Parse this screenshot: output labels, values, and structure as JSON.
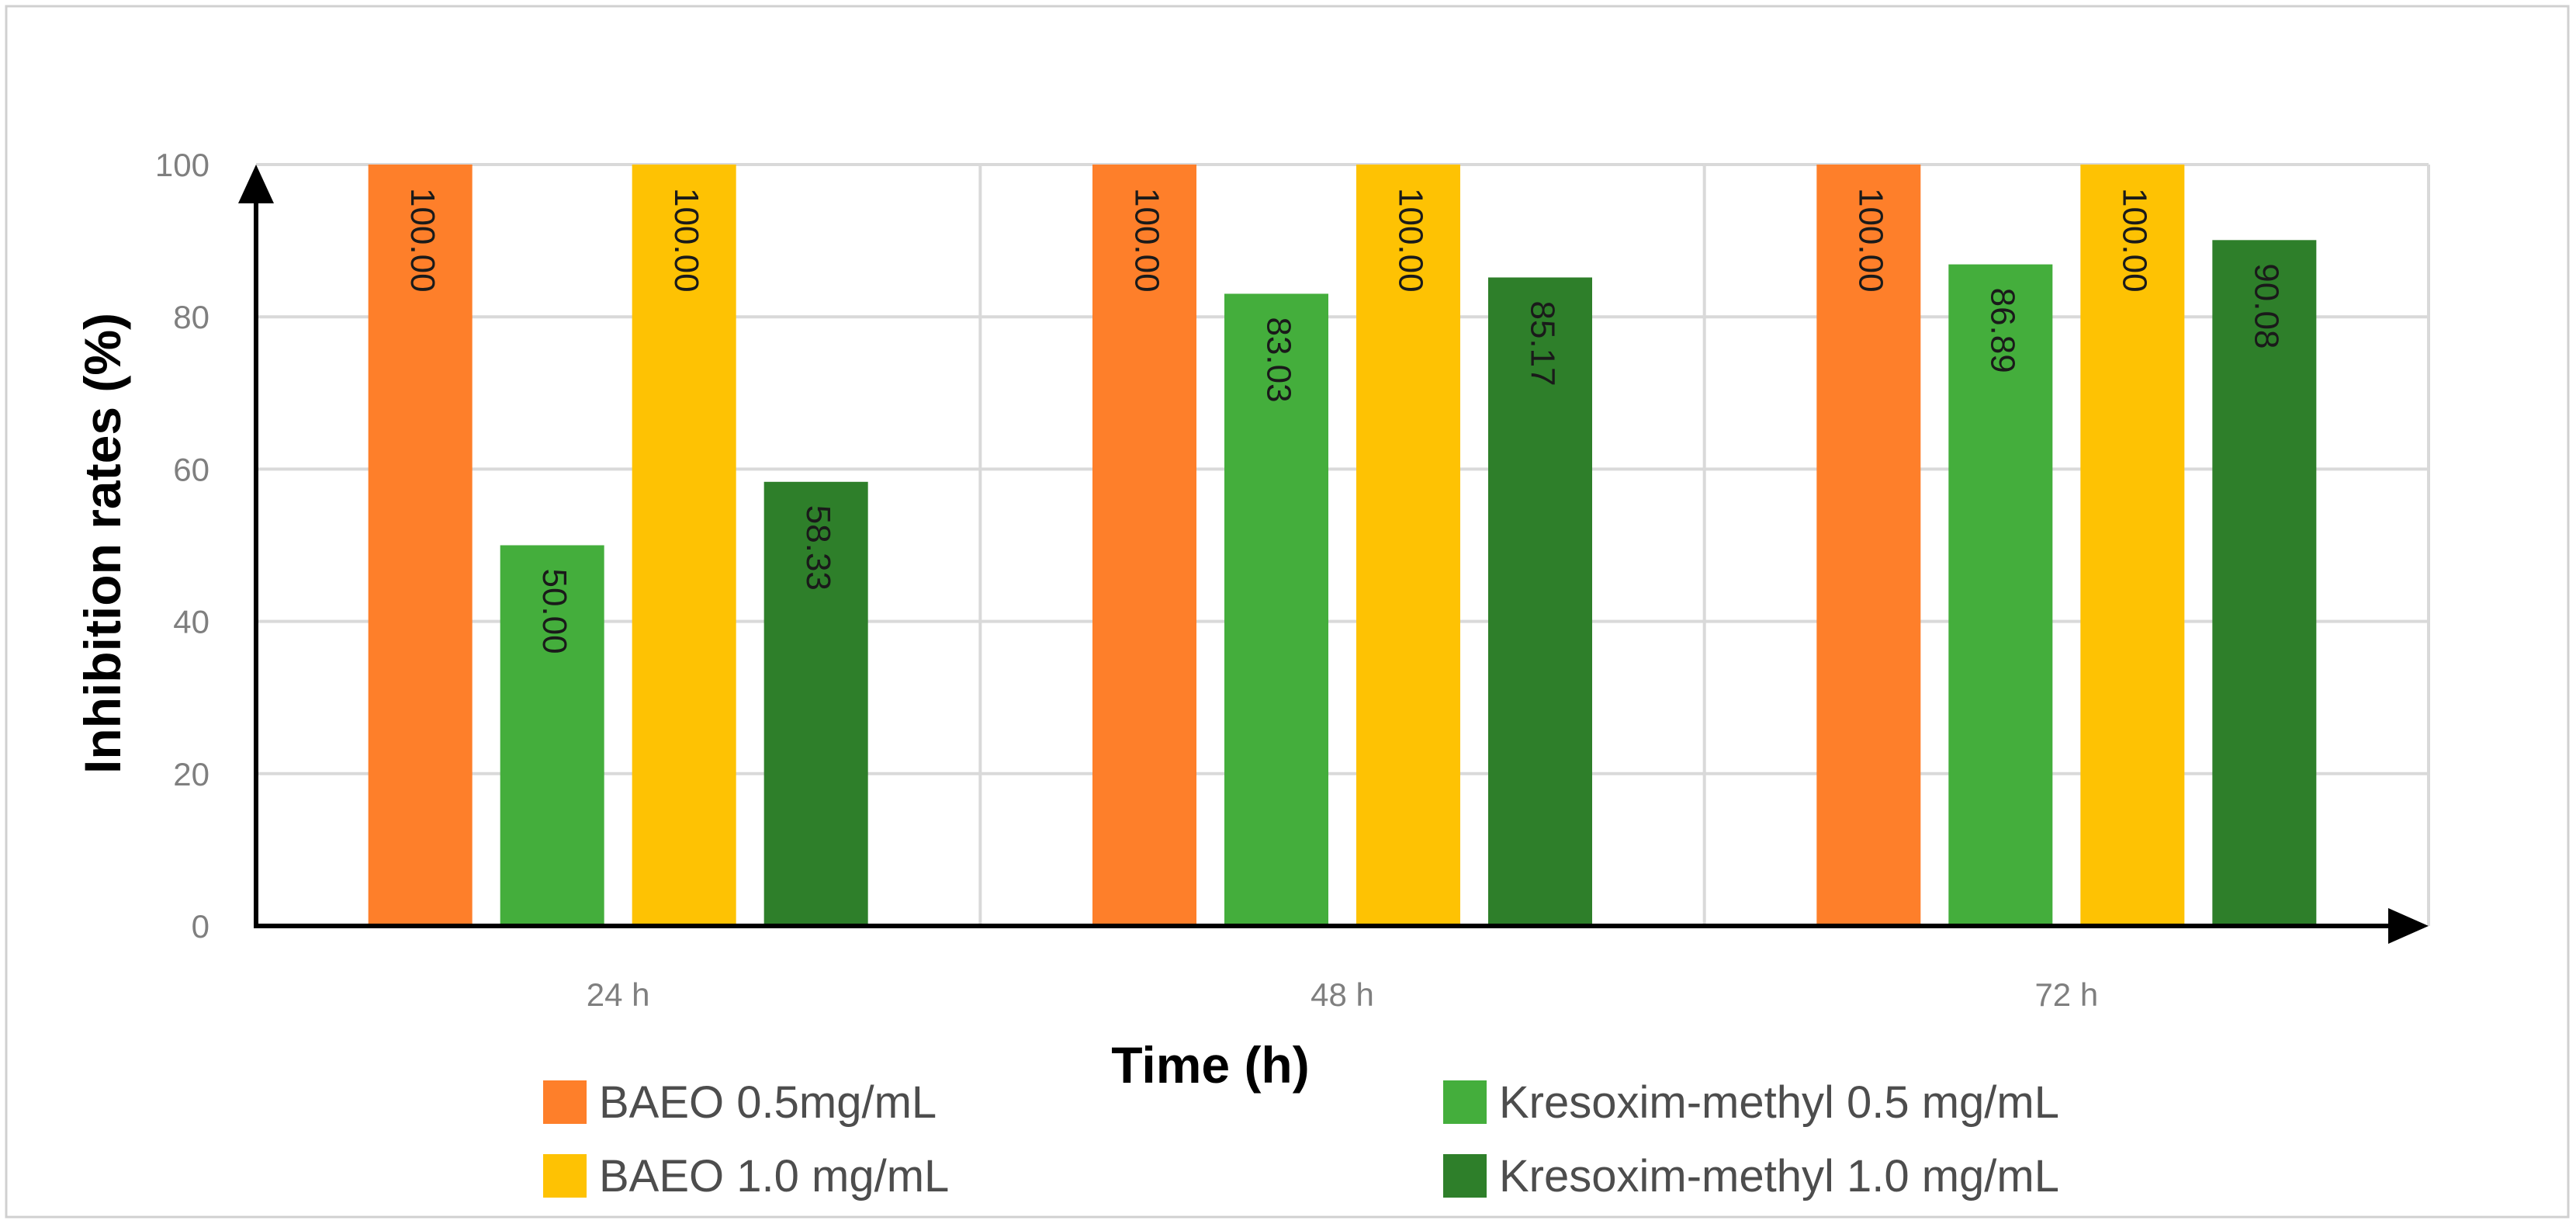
{
  "chart_data": {
    "type": "bar",
    "title": "",
    "xlabel": "Time (h)",
    "ylabel": "Inhibition rates (%)",
    "ylim": [
      0,
      100
    ],
    "yticks": [
      0,
      20,
      40,
      60,
      80,
      100
    ],
    "grid": true,
    "legend_position": "bottom",
    "categories": [
      "24 h",
      "48 h",
      "72 h"
    ],
    "series": [
      {
        "name": "BAEO 0.5mg/mL",
        "color": "#fe7f2a",
        "values": [
          100.0,
          100.0,
          100.0
        ],
        "labels": [
          "100.00",
          "100.00",
          "100.00"
        ]
      },
      {
        "name": "Kresoxim-methyl 0.5 mg/mL",
        "color": "#44ae3c",
        "values": [
          50.0,
          83.03,
          86.89
        ],
        "labels": [
          "50.00",
          "83.03",
          "86.89"
        ]
      },
      {
        "name": "BAEO 1.0 mg/mL",
        "color": "#fec203",
        "values": [
          100.0,
          100.0,
          100.0
        ],
        "labels": [
          "100.00",
          "100.00",
          "100.00"
        ]
      },
      {
        "name": "Kresoxim-methyl 1.0 mg/mL",
        "color": "#2e7f2a",
        "values": [
          58.33,
          85.17,
          90.08
        ],
        "labels": [
          "58.33",
          "85.17",
          "90.08"
        ]
      }
    ],
    "colors": {
      "grid": "#d9d9d9",
      "axis": "#000000",
      "frame": "#d0d0d0"
    }
  }
}
